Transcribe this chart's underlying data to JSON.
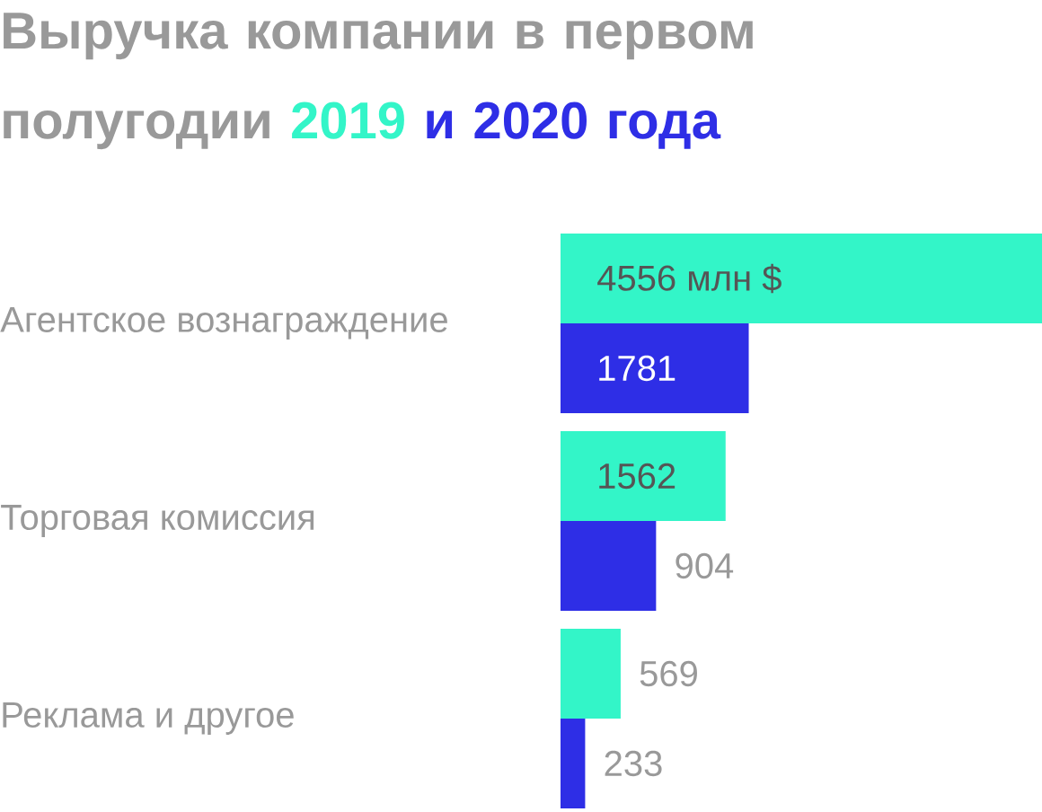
{
  "chart_data": {
    "type": "bar",
    "orientation": "horizontal",
    "title": "Выручка компании в первом полугодии",
    "categories": [
      "Агентское вознаграждение",
      "Торговая комиссия",
      "Реклама и другое"
    ],
    "xlim": [
      0,
      4556
    ],
    "series": [
      {
        "name": "2019",
        "color": "#33f5c8",
        "values": [
          4556,
          1562,
          569
        ],
        "value_labels": [
          "4556 млн $",
          "1562",
          "569"
        ]
      },
      {
        "name": "и 2020 года",
        "color": "#2e2ee6",
        "values": [
          1781,
          904,
          233
        ],
        "value_labels": [
          "1781",
          "904",
          "233"
        ]
      }
    ]
  }
}
